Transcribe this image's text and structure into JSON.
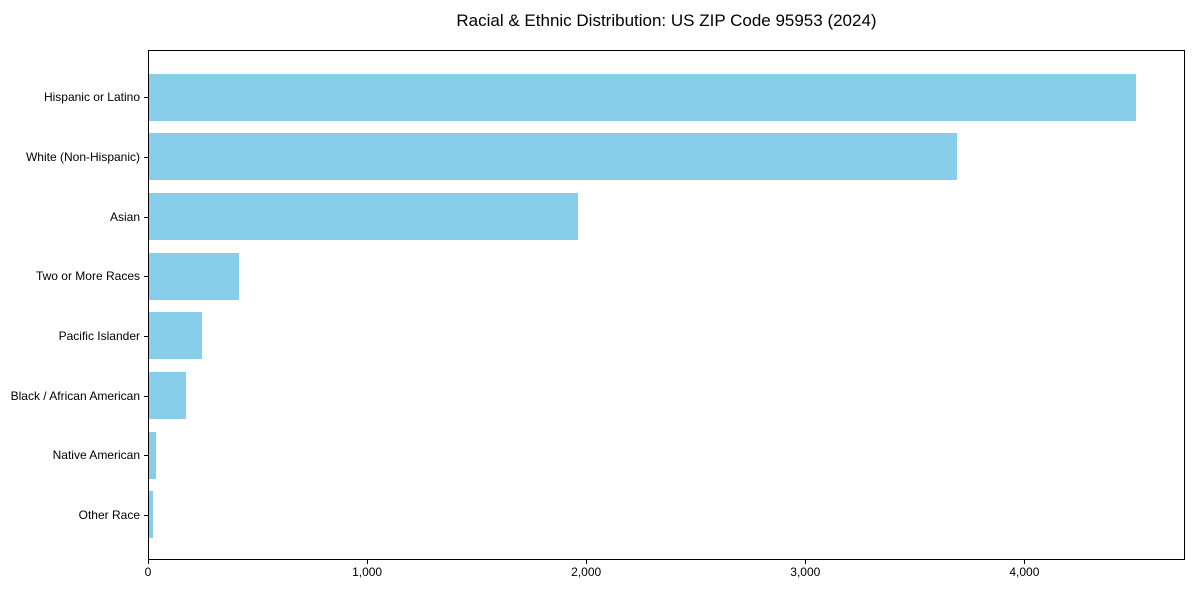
{
  "chart_data": {
    "type": "bar",
    "orientation": "horizontal",
    "title": "Racial & Ethnic Distribution: US ZIP Code 95953 (2024)",
    "categories": [
      "Hispanic or Latino",
      "White (Non-Hispanic)",
      "Asian",
      "Two or More Races",
      "Pacific Islander",
      "Black / African American",
      "Native American",
      "Other Race"
    ],
    "values": [
      4510,
      3690,
      1960,
      410,
      240,
      170,
      30,
      18
    ],
    "xlabel": "",
    "ylabel": "",
    "x_ticks": [
      0,
      1000,
      2000,
      3000,
      4000
    ],
    "x_tick_labels": [
      "0",
      "1,000",
      "2,000",
      "3,000",
      "4,000"
    ],
    "xlim": [
      0,
      4733
    ],
    "bar_color": "#87CEEB",
    "background_color": "#ffffff",
    "spine_color": "#000000",
    "grid": false,
    "legend": null
  }
}
